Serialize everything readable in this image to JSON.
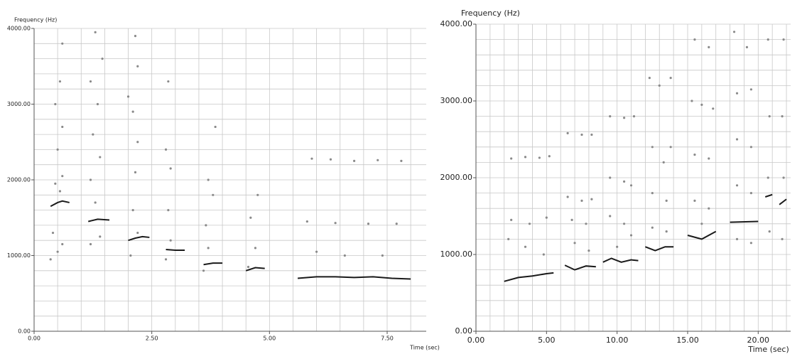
{
  "chart_data": [
    {
      "type": "scatter",
      "ylabel": "Frequency (Hz)",
      "xlabel": "Time (sec)",
      "xlim": [
        0,
        8.33
      ],
      "ylim": [
        0,
        4000
      ],
      "xticks": [
        {
          "value": 0,
          "label": "0.00"
        },
        {
          "value": 2.5,
          "label": "2.50"
        },
        {
          "value": 5,
          "label": "5.00"
        },
        {
          "value": 7.5,
          "label": "7.50"
        }
      ],
      "yticks": [
        {
          "value": 0,
          "label": "0.00"
        },
        {
          "value": 1000,
          "label": "1000.00"
        },
        {
          "value": 2000,
          "label": "2000.00"
        },
        {
          "value": 3000,
          "label": "3000.00"
        },
        {
          "value": 4000,
          "label": "4000.00"
        }
      ],
      "x_grid_step": 0.5,
      "y_grid_step": 200,
      "series": [
        {
          "style": "points",
          "color": "#8a8a8a",
          "x": [
            0.35,
            0.5,
            0.6,
            0.4,
            0.55,
            0.45,
            0.6,
            0.5,
            0.6,
            0.45,
            0.55,
            0.6,
            1.2,
            1.4,
            1.3,
            1.2,
            1.4,
            1.25,
            1.35,
            1.2,
            1.45,
            1.3,
            2.05,
            2.2,
            2.1,
            2.15,
            2.2,
            2.1,
            2.0,
            2.2,
            2.15,
            2.8,
            2.9,
            2.85,
            2.9,
            2.8,
            2.85,
            3.6,
            3.7,
            3.65,
            3.8,
            3.7,
            3.85,
            4.55,
            4.7,
            4.6,
            4.75,
            5.9,
            6.3,
            6.8,
            7.3,
            7.8,
            5.8,
            6.4,
            7.1,
            7.7,
            6.0,
            6.6,
            7.4
          ],
          "values": [
            950,
            1050,
            1150,
            1300,
            1850,
            1950,
            2050,
            2400,
            2700,
            3000,
            3300,
            3800,
            1150,
            1250,
            1700,
            2000,
            2300,
            2600,
            3000,
            3300,
            3600,
            3950,
            1000,
            1300,
            1600,
            2100,
            2500,
            2900,
            3100,
            3500,
            3900,
            950,
            1200,
            1600,
            2150,
            2400,
            3300,
            800,
            1100,
            1400,
            1800,
            2000,
            2700,
            850,
            1100,
            1500,
            1800,
            2280,
            2270,
            2250,
            2260,
            2250,
            1450,
            1430,
            1420,
            1420,
            1050,
            1000,
            1000
          ]
        },
        {
          "style": "line",
          "color": "#1a1a1a",
          "x": [
            0.35,
            0.5,
            0.6,
            0.75,
            null,
            1.15,
            1.35,
            1.6,
            null,
            2.0,
            2.15,
            2.3,
            2.45,
            null,
            2.8,
            3.0,
            3.2,
            null,
            3.6,
            3.8,
            4.0,
            null,
            4.5,
            4.7,
            4.9,
            null,
            5.6,
            6.0,
            6.4,
            6.8,
            7.2,
            7.6,
            8.0
          ],
          "values": [
            1650,
            1700,
            1720,
            1700,
            null,
            1450,
            1480,
            1470,
            null,
            1200,
            1230,
            1250,
            1240,
            null,
            1080,
            1070,
            1070,
            null,
            880,
            900,
            900,
            null,
            800,
            840,
            830,
            null,
            700,
            720,
            720,
            710,
            720,
            700,
            690
          ]
        }
      ]
    },
    {
      "type": "scatter",
      "ylabel": "Frequency (Hz)",
      "xlabel": "Time (sec)",
      "xlim": [
        0,
        22.3
      ],
      "ylim": [
        0,
        4000
      ],
      "xticks": [
        {
          "value": 0,
          "label": "0.00"
        },
        {
          "value": 5,
          "label": "5.00"
        },
        {
          "value": 10,
          "label": "10.00"
        },
        {
          "value": 15,
          "label": "15.00"
        },
        {
          "value": 20,
          "label": "20.00"
        }
      ],
      "yticks": [
        {
          "value": 0,
          "label": "0.00"
        },
        {
          "value": 1000,
          "label": "1000.00"
        },
        {
          "value": 2000,
          "label": "2000.00"
        },
        {
          "value": 3000,
          "label": "3000.00"
        },
        {
          "value": 4000,
          "label": "4000.00"
        }
      ],
      "x_grid_step": 1,
      "y_grid_step": 200,
      "series": [
        {
          "style": "points",
          "color": "#8a8a8a",
          "x": [
            2.5,
            3.5,
            4.5,
            5.2,
            2.5,
            3.8,
            5,
            2.3,
            3.5,
            4.8,
            6.5,
            7.5,
            8.2,
            6.5,
            7.5,
            8.2,
            6.8,
            7.8,
            7,
            8,
            9.5,
            10.5,
            11.2,
            9.5,
            10.5,
            11,
            9.5,
            10.5,
            11,
            10,
            12.3,
            13,
            13.8,
            12.5,
            13.3,
            13.8,
            12.5,
            13.5,
            12.5,
            13.5,
            15.5,
            16.5,
            15.3,
            16,
            16.8,
            15.5,
            16.5,
            15.5,
            16.5,
            16,
            18.3,
            19.2,
            18.5,
            19.5,
            18.5,
            19.5,
            18.5,
            19.5,
            18.5,
            19.5,
            20.7,
            20.8,
            20.7,
            20.8,
            21.8,
            21.7,
            21.8,
            21.7
          ],
          "values": [
            2250,
            2270,
            2260,
            2280,
            1450,
            1400,
            1480,
            1200,
            1100,
            1000,
            2580,
            2560,
            2560,
            1750,
            1700,
            1720,
            1450,
            1400,
            1150,
            1050,
            2800,
            2780,
            2800,
            2000,
            1950,
            1900,
            1500,
            1400,
            1250,
            1100,
            3300,
            3200,
            3300,
            2400,
            2200,
            2400,
            1800,
            1700,
            1350,
            1300,
            3800,
            3700,
            3000,
            2950,
            2900,
            2300,
            2250,
            1700,
            1600,
            1400,
            3900,
            3700,
            3100,
            3150,
            2500,
            2400,
            1900,
            1800,
            1200,
            1150,
            3800,
            2800,
            2000,
            1300,
            3800,
            2800,
            2000,
            1200
          ]
        },
        {
          "style": "line",
          "color": "#1a1a1a",
          "x": [
            2,
            3,
            4,
            5,
            5.5,
            null,
            6.3,
            7,
            7.8,
            8.5,
            null,
            9,
            9.6,
            10.3,
            11,
            11.5,
            null,
            12,
            12.7,
            13.4,
            14,
            null,
            15,
            16,
            17,
            null,
            18,
            20,
            null,
            20.5,
            21,
            null,
            21.5,
            22
          ],
          "values": [
            650,
            700,
            720,
            750,
            760,
            null,
            860,
            800,
            850,
            840,
            null,
            900,
            950,
            900,
            930,
            920,
            null,
            1100,
            1050,
            1100,
            1100,
            null,
            1250,
            1200,
            1300,
            null,
            1420,
            1430,
            null,
            1750,
            1780,
            null,
            1650,
            1720
          ]
        }
      ]
    }
  ]
}
